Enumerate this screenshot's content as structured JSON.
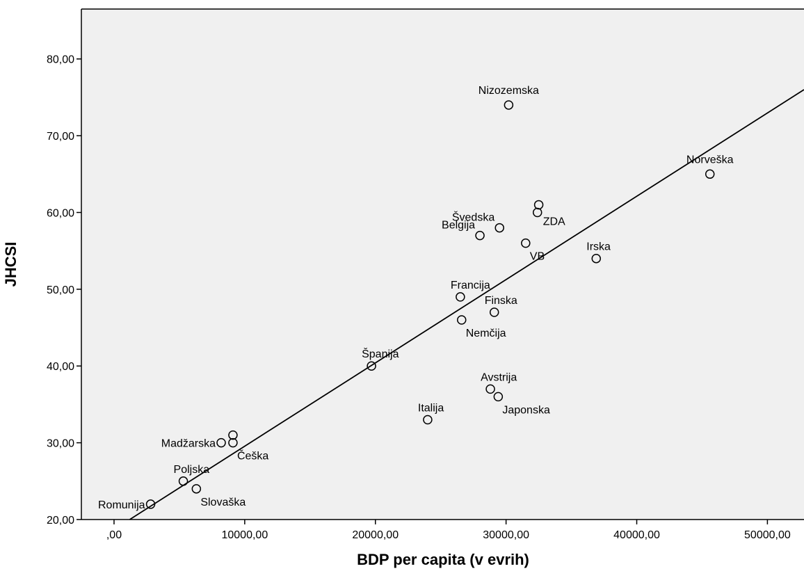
{
  "chart_data": {
    "type": "scatter",
    "xlabel": "BDP per capita (v evrih)",
    "ylabel": "JHCSI",
    "xlim": [
      -2500,
      52800
    ],
    "ylim": [
      20,
      86.5
    ],
    "x_ticks": [
      {
        "value": 0,
        "label": ",00"
      },
      {
        "value": 10000,
        "label": "10000,00"
      },
      {
        "value": 20000,
        "label": "20000,00"
      },
      {
        "value": 30000,
        "label": "30000,00"
      },
      {
        "value": 40000,
        "label": "40000,00"
      },
      {
        "value": 50000,
        "label": "50000,00"
      }
    ],
    "y_ticks": [
      {
        "value": 20,
        "label": "20,00"
      },
      {
        "value": 30,
        "label": "30,00"
      },
      {
        "value": 40,
        "label": "40,00"
      },
      {
        "value": 50,
        "label": "50,00"
      },
      {
        "value": 60,
        "label": "60,00"
      },
      {
        "value": 70,
        "label": "70,00"
      },
      {
        "value": 80,
        "label": "80,00"
      }
    ],
    "grid": false,
    "plot_background": "#f0f0f0",
    "fit_line": {
      "x1": 0,
      "y1": 18.7,
      "x2": 52800,
      "y2": 76.0
    },
    "points": [
      {
        "label": "Nizozemska",
        "x": 30200,
        "y": 74,
        "anchor": "above"
      },
      {
        "label": "Norveška",
        "x": 45600,
        "y": 65,
        "anchor": "above"
      },
      {
        "label": "",
        "x": 32500,
        "y": 61,
        "anchor": "none"
      },
      {
        "label": "Švedska",
        "x": 29500,
        "y": 58,
        "anchor": "left-above"
      },
      {
        "label": "ZDA",
        "x": 32400,
        "y": 60,
        "anchor": "right-below"
      },
      {
        "label": "Belgija",
        "x": 28000,
        "y": 57,
        "anchor": "left-above"
      },
      {
        "label": "VB",
        "x": 31500,
        "y": 56,
        "anchor": "below-right"
      },
      {
        "label": "Irska",
        "x": 36900,
        "y": 54,
        "anchor": "above-right"
      },
      {
        "label": "Francija",
        "x": 26500,
        "y": 49,
        "anchor": "above-right"
      },
      {
        "label": "Finska",
        "x": 29100,
        "y": 47,
        "anchor": "above-right"
      },
      {
        "label": "Nemčija",
        "x": 26600,
        "y": 46,
        "anchor": "below-right"
      },
      {
        "label": "Španija",
        "x": 19700,
        "y": 40,
        "anchor": "above-right"
      },
      {
        "label": "Avstrija",
        "x": 28800,
        "y": 37,
        "anchor": "above-right"
      },
      {
        "label": "Japonska",
        "x": 29400,
        "y": 36,
        "anchor": "below-right"
      },
      {
        "label": "Italija",
        "x": 24000,
        "y": 33,
        "anchor": "above-right"
      },
      {
        "label": "",
        "x": 9100,
        "y": 31,
        "anchor": "none"
      },
      {
        "label": "Madžarska",
        "x": 8200,
        "y": 30,
        "anchor": "left"
      },
      {
        "label": "Češka",
        "x": 9100,
        "y": 30,
        "anchor": "below-right"
      },
      {
        "label": "Poljska",
        "x": 5300,
        "y": 25,
        "anchor": "above-right"
      },
      {
        "label": "Slovaška",
        "x": 6300,
        "y": 24,
        "anchor": "below-right"
      },
      {
        "label": "Romunija",
        "x": 2800,
        "y": 22,
        "anchor": "left"
      }
    ]
  }
}
